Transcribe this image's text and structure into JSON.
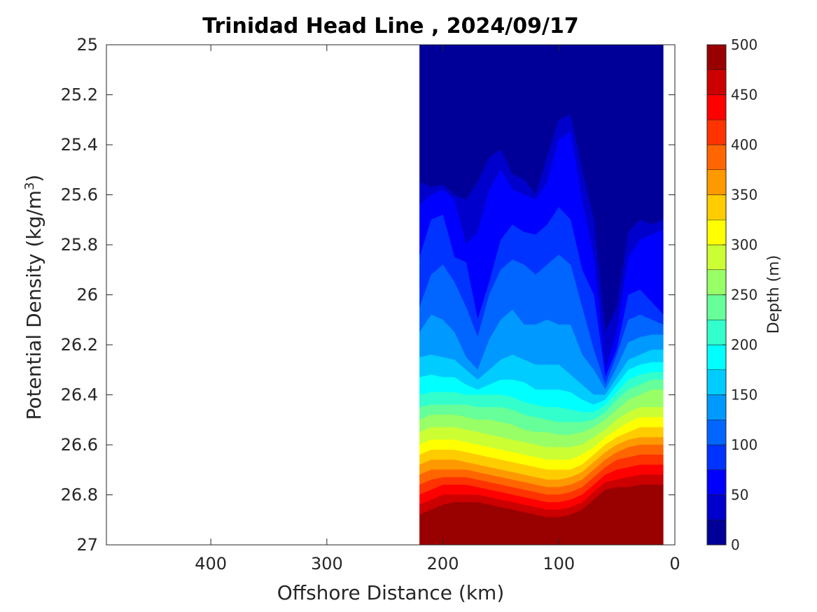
{
  "chart_data": {
    "type": "contour",
    "title": "Trinidad Head Line , 2024/09/17",
    "xlabel": "Offshore Distance (km)",
    "ylabel": "Potential Density (kg/m",
    "ylabel_superscript": "3",
    "ylabel_suffix": ")",
    "xlim": [
      490,
      0
    ],
    "ylim": [
      25,
      27
    ],
    "x_reversed": true,
    "y_reversed": true,
    "x_ticks": [
      400,
      300,
      200,
      100,
      0
    ],
    "y_ticks": [
      25,
      25.2,
      25.4,
      25.6,
      25.8,
      26,
      26.2,
      26.4,
      26.6,
      26.8,
      27
    ],
    "y_tick_labels": [
      "25",
      "25.2",
      "25.4",
      "25.6",
      "25.8",
      "26",
      "26.2",
      "26.4",
      "26.6",
      "26.8",
      "27"
    ],
    "colorbar": {
      "label": "Depth (m)",
      "min": 0,
      "max": 500,
      "step": 25,
      "ticks": [
        0,
        50,
        100,
        150,
        200,
        250,
        300,
        350,
        400,
        450,
        500
      ],
      "colormap": "jet"
    },
    "grid": false,
    "data_extent_km": [
      12,
      220
    ],
    "stations_km": [
      220,
      210,
      200,
      190,
      180,
      170,
      160,
      150,
      140,
      130,
      120,
      110,
      100,
      90,
      80,
      70,
      60,
      50,
      40,
      30,
      20,
      10
    ],
    "depth_levels_m": [
      25,
      50,
      75,
      100,
      125,
      150,
      175,
      200,
      225,
      250,
      275,
      300,
      325,
      350,
      375,
      400,
      425,
      450,
      475
    ],
    "depth_isopycnal_sigma": [
      [
        25.55,
        25.57,
        25.56,
        25.6,
        25.62,
        25.55,
        25.45,
        25.42,
        25.52,
        25.54,
        25.6,
        25.45,
        25.3,
        25.28,
        25.5,
        25.7,
        26.15,
        26.05,
        25.75,
        25.7,
        25.72,
        25.7
      ],
      [
        25.64,
        25.6,
        25.58,
        25.62,
        25.8,
        25.75,
        25.58,
        25.5,
        25.58,
        25.6,
        25.62,
        25.55,
        25.38,
        25.35,
        25.62,
        25.85,
        26.3,
        26.15,
        25.85,
        25.78,
        25.76,
        25.74
      ],
      [
        25.85,
        25.7,
        25.68,
        25.85,
        25.87,
        26.1,
        25.95,
        25.78,
        25.72,
        25.75,
        25.76,
        25.72,
        25.65,
        25.7,
        25.9,
        26.0,
        26.33,
        26.22,
        26.0,
        25.98,
        26.03,
        26.08
      ],
      [
        26.05,
        25.92,
        25.88,
        25.95,
        26.05,
        26.17,
        26.0,
        25.9,
        25.86,
        25.88,
        25.92,
        25.88,
        25.84,
        25.88,
        26.05,
        26.22,
        26.36,
        26.24,
        26.1,
        26.08,
        26.1,
        26.12
      ],
      [
        26.15,
        26.08,
        26.1,
        26.15,
        26.25,
        26.3,
        26.18,
        26.1,
        26.06,
        26.12,
        26.12,
        26.1,
        26.12,
        26.12,
        26.24,
        26.3,
        26.38,
        26.29,
        26.19,
        26.17,
        26.16
      ],
      [
        26.25,
        26.24,
        26.25,
        26.26,
        26.3,
        26.34,
        26.3,
        26.26,
        26.24,
        26.26,
        26.28,
        26.28,
        26.28,
        26.32,
        26.36,
        26.4,
        26.4,
        26.33,
        26.26,
        26.24,
        26.22
      ],
      [
        26.33,
        26.32,
        26.33,
        26.33,
        26.36,
        26.38,
        26.36,
        26.34,
        26.34,
        26.35,
        26.38,
        26.38,
        26.38,
        26.39,
        26.42,
        26.44,
        26.42,
        26.36,
        26.3,
        26.28,
        26.27
      ],
      [
        26.4,
        26.39,
        26.39,
        26.39,
        26.4,
        26.4,
        26.4,
        26.4,
        26.41,
        26.43,
        26.44,
        26.45,
        26.45,
        26.46,
        26.47,
        26.47,
        26.44,
        26.39,
        26.34,
        26.32,
        26.31
      ],
      [
        26.45,
        26.44,
        26.44,
        26.44,
        26.44,
        26.45,
        26.45,
        26.45,
        26.46,
        26.48,
        26.49,
        26.5,
        26.51,
        26.51,
        26.51,
        26.5,
        26.47,
        26.42,
        26.38,
        26.36,
        26.34
      ],
      [
        26.5,
        26.48,
        26.48,
        26.48,
        26.49,
        26.5,
        26.5,
        26.51,
        26.52,
        26.54,
        26.55,
        26.55,
        26.56,
        26.56,
        26.55,
        26.53,
        26.5,
        26.46,
        26.42,
        26.4,
        26.38
      ],
      [
        26.55,
        26.53,
        26.53,
        26.53,
        26.54,
        26.55,
        26.56,
        26.57,
        26.58,
        26.59,
        26.6,
        26.61,
        26.61,
        26.61,
        26.6,
        26.57,
        26.54,
        26.5,
        26.47,
        26.45
      ],
      [
        26.6,
        26.58,
        26.58,
        26.58,
        26.59,
        26.6,
        26.61,
        26.62,
        26.63,
        26.64,
        26.65,
        26.66,
        26.66,
        26.66,
        26.64,
        26.61,
        26.57,
        26.54,
        26.51,
        26.49
      ],
      [
        26.64,
        26.62,
        26.62,
        26.62,
        26.63,
        26.64,
        26.65,
        26.66,
        26.67,
        26.68,
        26.69,
        26.7,
        26.7,
        26.7,
        26.68,
        26.64,
        26.6,
        26.57,
        26.55,
        26.53
      ],
      [
        26.68,
        26.66,
        26.66,
        26.66,
        26.67,
        26.68,
        26.69,
        26.7,
        26.71,
        26.72,
        26.73,
        26.74,
        26.74,
        26.73,
        26.71,
        26.67,
        26.63,
        26.6,
        26.58,
        26.57
      ],
      [
        26.72,
        26.7,
        26.7,
        26.7,
        26.7,
        26.71,
        26.72,
        26.73,
        26.74,
        26.75,
        26.76,
        26.77,
        26.77,
        26.76,
        26.74,
        26.7,
        26.66,
        26.63,
        26.61,
        26.6
      ],
      [
        26.76,
        26.74,
        26.73,
        26.73,
        26.73,
        26.74,
        26.75,
        26.76,
        26.77,
        26.78,
        26.79,
        26.8,
        26.8,
        26.79,
        26.77,
        26.73,
        26.69,
        26.66,
        26.65,
        26.64
      ],
      [
        26.8,
        26.78,
        26.76,
        26.76,
        26.76,
        26.77,
        26.78,
        26.79,
        26.8,
        26.81,
        26.82,
        26.83,
        26.83,
        26.82,
        26.8,
        26.76,
        26.72,
        26.7,
        26.69,
        26.68
      ],
      [
        26.84,
        26.82,
        26.8,
        26.8,
        26.8,
        26.8,
        26.81,
        26.82,
        26.83,
        26.84,
        26.85,
        26.86,
        26.86,
        26.85,
        26.83,
        26.79,
        26.75,
        26.74,
        26.73,
        26.72
      ],
      [
        26.88,
        26.86,
        26.84,
        26.83,
        26.83,
        26.83,
        26.84,
        26.85,
        26.86,
        26.87,
        26.88,
        26.89,
        26.89,
        26.88,
        26.86,
        26.82,
        26.78,
        26.77,
        26.77,
        26.76
      ]
    ]
  }
}
